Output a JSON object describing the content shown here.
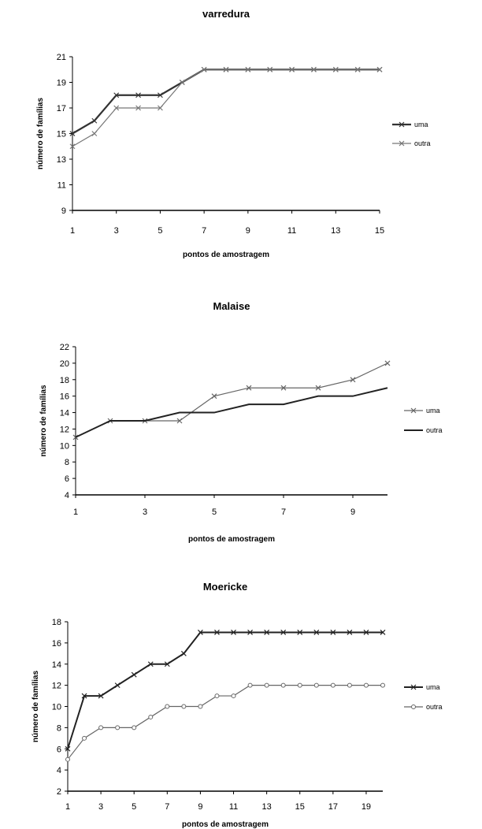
{
  "chart_data": [
    {
      "type": "line",
      "title": "varredura",
      "xlabel": "pontos de amostragem",
      "ylabel": "número de famílias",
      "ylim": [
        9,
        21
      ],
      "yticks": [
        9,
        11,
        13,
        15,
        17,
        19,
        21
      ],
      "xlim": [
        1,
        15
      ],
      "xticks": [
        1,
        3,
        5,
        7,
        9,
        11,
        13,
        15
      ],
      "x": [
        1,
        2,
        3,
        4,
        5,
        6,
        7,
        8,
        9,
        10,
        11,
        12,
        13,
        14,
        15
      ],
      "legend_position": "right",
      "series": [
        {
          "name": "uma",
          "values": [
            15,
            16,
            18,
            18,
            18,
            19,
            20,
            20,
            20,
            20,
            20,
            20,
            20,
            20,
            20
          ],
          "color": "#333333",
          "width": 2.2,
          "marker": "x"
        },
        {
          "name": "outra",
          "values": [
            14,
            15,
            17,
            17,
            17,
            19,
            20,
            20,
            20,
            20,
            20,
            20,
            20,
            20,
            20
          ],
          "color": "#777777",
          "width": 1.2,
          "marker": "x"
        }
      ]
    },
    {
      "type": "line",
      "title": "Malaise",
      "xlabel": "pontos de amostragem",
      "ylabel": "número de famílias",
      "ylim": [
        4,
        22
      ],
      "yticks": [
        4,
        6,
        8,
        10,
        12,
        14,
        16,
        18,
        20,
        22
      ],
      "xlim": [
        1,
        10
      ],
      "xticks": [
        1,
        3,
        5,
        7,
        9
      ],
      "x": [
        1,
        2,
        3,
        4,
        5,
        6,
        7,
        8,
        9,
        10
      ],
      "legend_position": "right",
      "series": [
        {
          "name": "uma",
          "values": [
            11,
            13,
            13,
            13,
            16,
            17,
            17,
            17,
            18,
            20
          ],
          "color": "#666666",
          "width": 1.2,
          "marker": "x"
        },
        {
          "name": "outra",
          "values": [
            11,
            13,
            13,
            14,
            14,
            15,
            15,
            16,
            16,
            17
          ],
          "color": "#222222",
          "width": 2.0,
          "marker": "none"
        }
      ]
    },
    {
      "type": "line",
      "title": "Moericke",
      "xlabel": "pontos de amostragem",
      "ylabel": "número de famílias",
      "ylim": [
        2,
        18
      ],
      "yticks": [
        2,
        4,
        6,
        8,
        10,
        12,
        14,
        16,
        18
      ],
      "xlim": [
        1,
        20
      ],
      "xticks": [
        1,
        3,
        5,
        7,
        9,
        11,
        13,
        15,
        17,
        19
      ],
      "x": [
        1,
        2,
        3,
        4,
        5,
        6,
        7,
        8,
        9,
        10,
        11,
        12,
        13,
        14,
        15,
        16,
        17,
        18,
        19,
        20
      ],
      "legend_position": "right",
      "series": [
        {
          "name": "uma",
          "values": [
            6,
            11,
            11,
            12,
            13,
            14,
            14,
            15,
            17,
            17,
            17,
            17,
            17,
            17,
            17,
            17,
            17,
            17,
            17,
            17
          ],
          "color": "#222222",
          "width": 2.0,
          "marker": "x"
        },
        {
          "name": "outra",
          "values": [
            5,
            7,
            8,
            8,
            8,
            9,
            10,
            10,
            10,
            11,
            11,
            12,
            12,
            12,
            12,
            12,
            12,
            12,
            12,
            12
          ],
          "color": "#666666",
          "width": 1.2,
          "marker": "circle"
        }
      ]
    }
  ]
}
